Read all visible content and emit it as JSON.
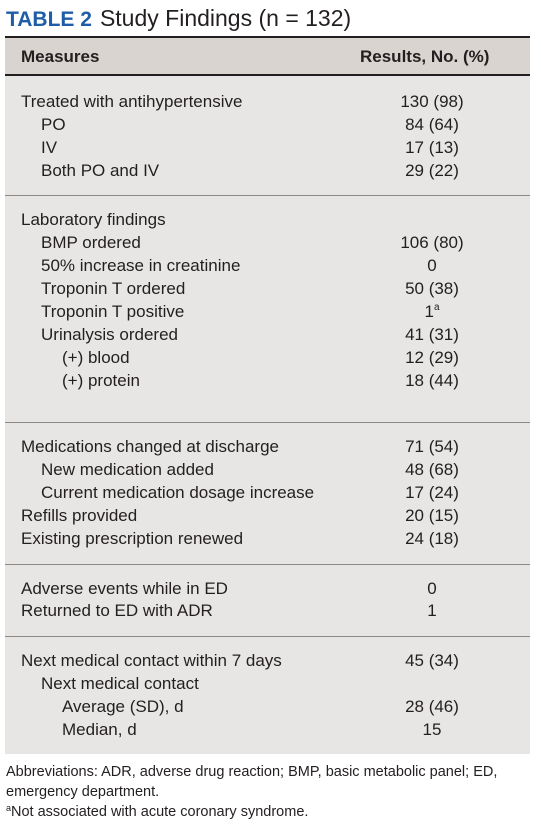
{
  "title": {
    "label": "TABLE 2",
    "text": "Study Findings (n = 132)"
  },
  "header": {
    "measures": "Measures",
    "results": "Results, No. (%)"
  },
  "sections": [
    {
      "rows": [
        {
          "label": "Treated with antihypertensive",
          "value": "130 (98)"
        },
        {
          "label": "PO",
          "value": "84 (64)"
        },
        {
          "label": "IV",
          "value": "17 (13)"
        },
        {
          "label": "Both PO and IV",
          "value": "29 (22)"
        }
      ]
    },
    {
      "rows": [
        {
          "label": "Laboratory findings",
          "value": ""
        },
        {
          "label": "BMP ordered",
          "value": "106 (80)"
        },
        {
          "label": "50% increase in creatinine",
          "value": "0"
        },
        {
          "label": "Troponin T ordered",
          "value": "50 (38)"
        },
        {
          "label": "Troponin T positive",
          "value": "1",
          "sup": "a"
        },
        {
          "label": "Urinalysis ordered",
          "value": "41 (31)"
        },
        {
          "label": "(+) blood",
          "value": "12 (29)"
        },
        {
          "label": "(+) protein",
          "value": "18 (44)"
        }
      ]
    },
    {
      "rows": [
        {
          "label": "Medications changed at discharge",
          "value": "71 (54)"
        },
        {
          "label": "New medication added",
          "value": "48 (68)"
        },
        {
          "label": "Current medication dosage increase",
          "value": "17 (24)"
        },
        {
          "label": "Refills provided",
          "value": "20 (15)"
        },
        {
          "label": "Existing prescription renewed",
          "value": "24 (18)"
        }
      ]
    },
    {
      "rows": [
        {
          "label": "Adverse events while in ED",
          "value": "0"
        },
        {
          "label": "Returned to ED with ADR",
          "value": "1"
        }
      ]
    },
    {
      "rows": [
        {
          "label": "Next medical contact within 7 days",
          "value": "45 (34)"
        },
        {
          "label": "Next medical contact",
          "value": ""
        },
        {
          "label": "Average (SD), d",
          "value": "28 (46)"
        },
        {
          "label": "Median, d",
          "value": "15"
        }
      ]
    }
  ],
  "footnotes": {
    "abbreviations": "Abbreviations: ADR, adverse drug reaction; BMP, basic metabolic panel; ED, emergency department.",
    "note_marker": "a",
    "note_text": "Not associated with acute coronary syndrome."
  }
}
